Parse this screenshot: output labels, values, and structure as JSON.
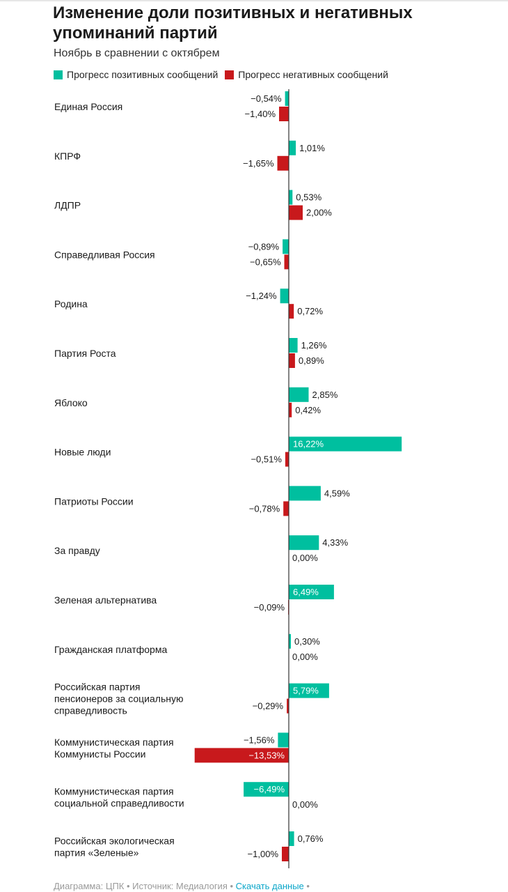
{
  "title": "Изменение доли позитивных и негативных упоминаний партий",
  "subtitle": "Ноябрь в сравнении с октябрем",
  "legend": {
    "positive": "Прогресс позитивных сообщений",
    "negative": "Прогресс негативных сообщений"
  },
  "colors": {
    "positive": "#00bf9f",
    "negative": "#c8191c",
    "axis": "#333333"
  },
  "chart_data": {
    "type": "bar",
    "orientation": "horizontal",
    "categories": [
      "Единая Россия",
      "КПРФ",
      "ЛДПР",
      "Справедливая Россия",
      "Родина",
      "Партия Роста",
      "Яблоко",
      "Новые люди",
      "Патриоты России",
      "За правду",
      "Зеленая альтернатива",
      "Гражданская платформа",
      "Российская партия пенсионеров за социальную справедливость",
      "Коммунистическая партия Коммунисты России",
      "Коммунистическая партия социальной справедливости",
      "Российская экологическая партия «Зеленые»"
    ],
    "category_lines": [
      [
        "Единая Россия"
      ],
      [
        "КПРФ"
      ],
      [
        "ЛДПР"
      ],
      [
        "Справедливая Россия"
      ],
      [
        "Родина"
      ],
      [
        "Партия Роста"
      ],
      [
        "Яблоко"
      ],
      [
        "Новые люди"
      ],
      [
        "Патриоты России"
      ],
      [
        "За правду"
      ],
      [
        "Зеленая альтернатива"
      ],
      [
        "Гражданская платформа"
      ],
      [
        "Российская партия",
        "пенсионеров за социальную",
        "справедливость"
      ],
      [
        "Коммунистическая партия",
        "Коммунисты России"
      ],
      [
        "Коммунистическая партия",
        "социальной справедливости"
      ],
      [
        "Российская экологическая",
        "партия «Зеленые»"
      ]
    ],
    "series": [
      {
        "name": "Прогресс позитивных сообщений",
        "values": [
          -0.54,
          1.01,
          0.53,
          -0.89,
          -1.24,
          1.26,
          2.85,
          16.22,
          4.59,
          4.33,
          6.49,
          0.3,
          5.79,
          -1.56,
          -6.49,
          0.76
        ],
        "labels": [
          "−0,54%",
          "1,01%",
          "0,53%",
          "−0,89%",
          "−1,24%",
          "1,26%",
          "2,85%",
          "16,22%",
          "4,59%",
          "4,33%",
          "6,49%",
          "0,30%",
          "5,79%",
          "−1,56%",
          "−6,49%",
          "0,76%"
        ]
      },
      {
        "name": "Прогресс негативных сообщений",
        "values": [
          -1.4,
          -1.65,
          2.0,
          -0.65,
          0.72,
          0.89,
          0.42,
          -0.51,
          -0.78,
          0.0,
          -0.09,
          0.0,
          -0.29,
          -13.53,
          0.0,
          -1.0
        ],
        "labels": [
          "−1,40%",
          "−1,65%",
          "2,00%",
          "−0,65%",
          "0,72%",
          "0,89%",
          "0,42%",
          "−0,51%",
          "−0,78%",
          "0,00%",
          "−0,09%",
          "0,00%",
          "−0,29%",
          "−13,53%",
          "0,00%",
          "−1,00%"
        ]
      }
    ],
    "xlim": [
      -13.6,
      16.3
    ],
    "grid": false,
    "legend_position": "top-left"
  },
  "footer": {
    "credit": "Диаграмма: ЦПК",
    "separator": " • ",
    "source": "Источник: Медиалогия",
    "download": "Скачать данные",
    "trail": " •"
  }
}
